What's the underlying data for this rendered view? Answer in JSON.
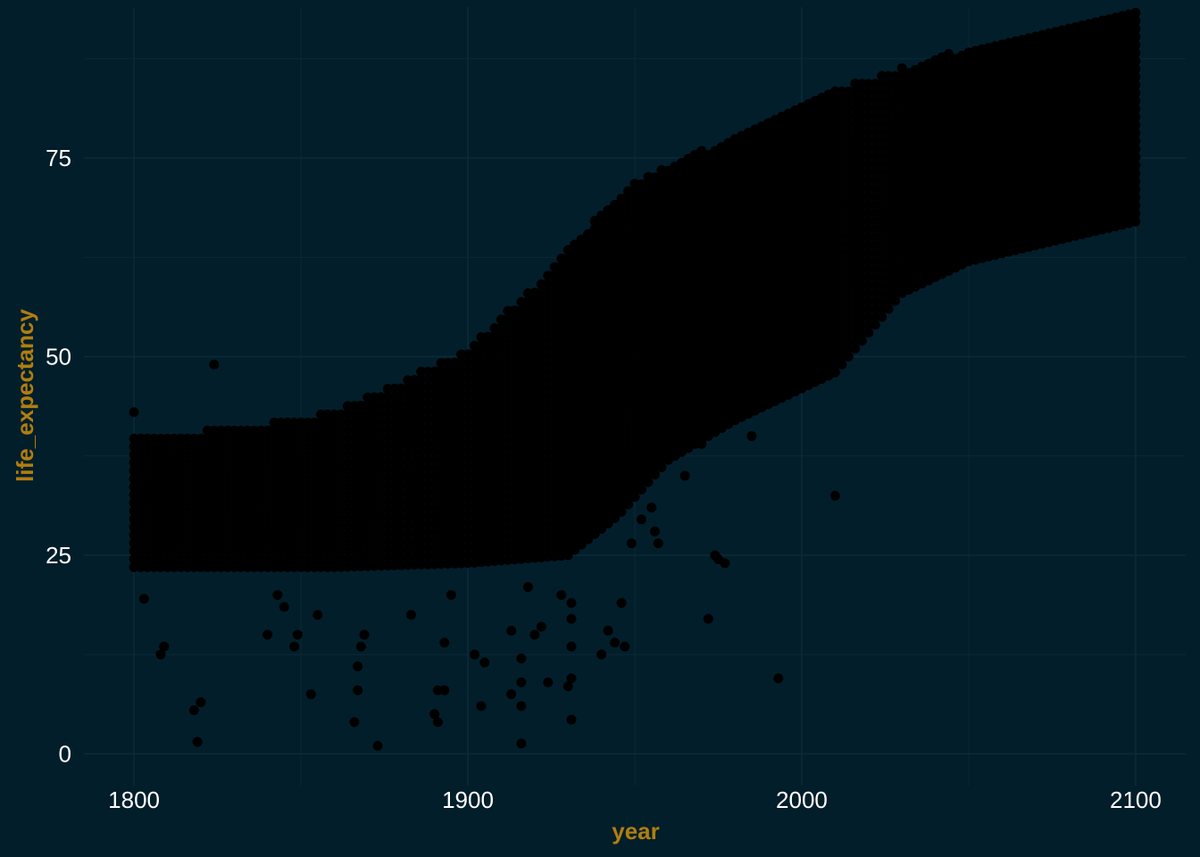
{
  "chart_data": {
    "type": "scatter",
    "title": "",
    "xlabel": "year",
    "ylabel": "life_expectancy",
    "xlim": [
      1785,
      2115
    ],
    "ylim": [
      -4,
      94
    ],
    "x_ticks": [
      1800,
      1900,
      2000,
      2100
    ],
    "x_tick_labels": [
      "1800",
      "1900",
      "2000",
      "2100"
    ],
    "x_minor_ticks": [
      1850,
      1950,
      2050
    ],
    "y_ticks": [
      0,
      25,
      50,
      75
    ],
    "y_tick_labels": [
      "0",
      "25",
      "50",
      "75"
    ],
    "y_minor_ticks": [
      12.5,
      37.5,
      62.5,
      87.5
    ],
    "grid": true,
    "legend": "none",
    "colors": {
      "background": "#021e2a",
      "grid": "#0c2b38",
      "points": "#000000",
      "axis_title": "#b07e10",
      "tick_label": "#ffffff"
    },
    "series": [
      {
        "upper_envelope": [
          [
            1800,
            40
          ],
          [
            1830,
            41
          ],
          [
            1860,
            43
          ],
          [
            1880,
            47
          ],
          [
            1900,
            51
          ],
          [
            1920,
            59
          ],
          [
            1935,
            66
          ],
          [
            1950,
            72
          ],
          [
            1975,
            77
          ],
          [
            2000,
            82
          ],
          [
            2020,
            85
          ],
          [
            2050,
            89
          ],
          [
            2100,
            94
          ]
        ],
        "lower_envelope": [
          [
            1800,
            23.5
          ],
          [
            1860,
            23.5
          ],
          [
            1900,
            24
          ],
          [
            1930,
            25
          ],
          [
            1945,
            30
          ],
          [
            1960,
            37
          ],
          [
            1980,
            42
          ],
          [
            2000,
            46
          ],
          [
            2010,
            48
          ],
          [
            2030,
            58
          ],
          [
            2050,
            62
          ],
          [
            2100,
            67
          ]
        ],
        "outliers": [
          [
            1800,
            43
          ],
          [
            1803,
            19.5
          ],
          [
            1808,
            12.5
          ],
          [
            1809,
            13.5
          ],
          [
            1818,
            5.5
          ],
          [
            1819,
            1.5
          ],
          [
            1820,
            6.5
          ],
          [
            1824,
            49
          ],
          [
            1840,
            15
          ],
          [
            1843,
            20
          ],
          [
            1845,
            18.5
          ],
          [
            1848,
            13.5
          ],
          [
            1849,
            15
          ],
          [
            1853,
            7.5
          ],
          [
            1855,
            17.5
          ],
          [
            1866,
            4
          ],
          [
            1867,
            8
          ],
          [
            1867,
            11
          ],
          [
            1868,
            13.5
          ],
          [
            1869,
            15
          ],
          [
            1873,
            1
          ],
          [
            1883,
            17.5
          ],
          [
            1890,
            5
          ],
          [
            1891,
            4
          ],
          [
            1891,
            8
          ],
          [
            1893,
            8
          ],
          [
            1893,
            14
          ],
          [
            1895,
            20
          ],
          [
            1902,
            12.5
          ],
          [
            1905,
            11.5
          ],
          [
            1904,
            6
          ],
          [
            1913,
            15.5
          ],
          [
            1913,
            7.5
          ],
          [
            1916,
            6
          ],
          [
            1916,
            1.3
          ],
          [
            1916,
            9
          ],
          [
            1916,
            12
          ],
          [
            1918,
            21
          ],
          [
            1920,
            15
          ],
          [
            1922,
            16
          ],
          [
            1924,
            9
          ],
          [
            1928,
            20
          ],
          [
            1930,
            8.5
          ],
          [
            1931,
            4.3
          ],
          [
            1931,
            9.5
          ],
          [
            1931,
            13.5
          ],
          [
            1931,
            17
          ],
          [
            1931,
            19
          ],
          [
            1940,
            12.5
          ],
          [
            1942,
            15.5
          ],
          [
            1944,
            14
          ],
          [
            1946,
            19
          ],
          [
            1947,
            13.5
          ],
          [
            1949,
            26.5
          ],
          [
            1952,
            29.5
          ],
          [
            1955,
            31
          ],
          [
            1956,
            28
          ],
          [
            1957,
            26.5
          ],
          [
            1965,
            35
          ],
          [
            1970,
            39
          ],
          [
            1972,
            17
          ],
          [
            1974,
            25
          ],
          [
            1975,
            24.5
          ],
          [
            1977,
            24
          ],
          [
            1985,
            40
          ],
          [
            1993,
            9.5
          ],
          [
            2010,
            32.5
          ]
        ]
      }
    ]
  }
}
